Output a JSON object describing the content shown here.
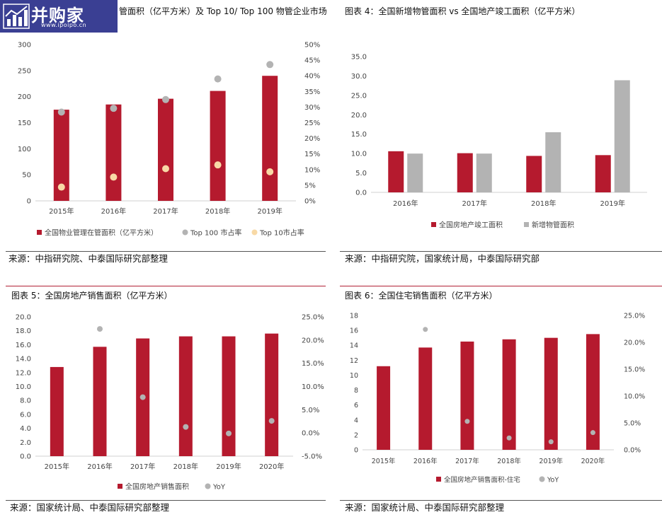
{
  "logo": {
    "name": "并购家",
    "url": "www.ipoipo.cn",
    "icon": "bar-chart-icon"
  },
  "colors": {
    "bar": "#b51a2e",
    "gray": "#b3b3b3",
    "peach": "#f8d9a6",
    "rule_red": "#b22235"
  },
  "charts": [
    {
      "title": "管面积（亿平方米）及 Top 10/ Top 100 物管企业市场",
      "source": "来源：中指研究院、中泰国际研究部整理",
      "chart_data": {
        "type": "bar",
        "categories": [
          "2015年",
          "2016年",
          "2017年",
          "2018年",
          "2019年"
        ],
        "ylim": [
          0,
          300
        ],
        "yticks": [
          "0",
          "50",
          "100",
          "150",
          "200",
          "250",
          "300"
        ],
        "y2lim": [
          0,
          50
        ],
        "y2ticks": [
          "0%",
          "5%",
          "10%",
          "15%",
          "20%",
          "25%",
          "30%",
          "35%",
          "40%",
          "45%",
          "50%"
        ],
        "series": [
          {
            "name": "全国物业管理在管面积（亿平方米）",
            "kind": "bar",
            "axis": "left",
            "color": "#b51a2e",
            "values": [
              175,
              185,
              196,
              211,
              240
            ]
          },
          {
            "name": "Top 100 市占率",
            "kind": "dot",
            "axis": "right",
            "color": "#b3b3b3",
            "values": [
              28.4,
              29.6,
              32.4,
              39.0,
              43.6
            ]
          },
          {
            "name": "Top 10市占率",
            "kind": "dot",
            "axis": "right",
            "color": "#f8d9a6",
            "values": [
              4.4,
              7.6,
              10.3,
              11.5,
              9.3
            ]
          }
        ]
      }
    },
    {
      "title": "图表 4：全国新增物管面积 vs 全国地产竣工面积（亿平方米）",
      "source": "来源：中指研究院，国家统计局，中泰国际研究部",
      "chart_data": {
        "type": "bar",
        "categories": [
          "2016年",
          "2017年",
          "2018年",
          "2019年"
        ],
        "ylim": [
          0,
          35
        ],
        "yticks": [
          "0.0",
          "5.0",
          "10.0",
          "15.0",
          "20.0",
          "25.0",
          "30.0",
          "35.0"
        ],
        "series": [
          {
            "name": "全国房地产竣工面积",
            "kind": "bar",
            "color": "#b51a2e",
            "values": [
              10.6,
              10.1,
              9.4,
              9.6
            ]
          },
          {
            "name": "新增物管面积",
            "kind": "bar",
            "color": "#b3b3b3",
            "values": [
              10.0,
              10.0,
              15.5,
              28.9
            ]
          }
        ]
      }
    },
    {
      "title": "图表 5：全国房地产销售面积（亿平方米）",
      "source": "来源：国家统计局、中泰国际研究部整理",
      "chart_data": {
        "type": "bar",
        "categories": [
          "2015年",
          "2016年",
          "2017年",
          "2018年",
          "2019年",
          "2020年"
        ],
        "ylim": [
          0,
          20
        ],
        "yticks": [
          "0.0",
          "2.0",
          "4.0",
          "6.0",
          "8.0",
          "10.0",
          "12.0",
          "14.0",
          "16.0",
          "18.0",
          "20.0"
        ],
        "y2lim": [
          -5,
          25
        ],
        "y2ticks": [
          "-5.0%",
          "0.0%",
          "5.0%",
          "10.0%",
          "15.0%",
          "20.0%",
          "25.0%"
        ],
        "series": [
          {
            "name": "全国房地产销售面积",
            "kind": "bar",
            "axis": "left",
            "color": "#b51a2e",
            "values": [
              12.8,
              15.7,
              16.9,
              17.2,
              17.2,
              17.6
            ]
          },
          {
            "name": "YoY",
            "kind": "dot",
            "axis": "right",
            "color": "#b3b3b3",
            "values": [
              null,
              22.4,
              7.7,
              1.3,
              -0.1,
              2.6
            ]
          }
        ]
      }
    },
    {
      "title": "图表 6：全国住宅销售面积（亿平方米）",
      "source": "来源：国家统计局、中泰国际研究部整理",
      "chart_data": {
        "type": "bar",
        "categories": [
          "2015年",
          "2016年",
          "2017年",
          "2018年",
          "2019年",
          "2020年"
        ],
        "ylim": [
          0,
          18
        ],
        "yticks": [
          "0",
          "2",
          "4",
          "6",
          "8",
          "10",
          "12",
          "14",
          "16",
          "18"
        ],
        "y2lim": [
          0,
          25
        ],
        "y2ticks": [
          "0.0%",
          "5.0%",
          "10.0%",
          "15.0%",
          "20.0%",
          "25.0%"
        ],
        "series": [
          {
            "name": "全国房地产销售面积-住宅",
            "kind": "bar",
            "axis": "left",
            "color": "#b51a2e",
            "values": [
              11.2,
              13.7,
              14.5,
              14.8,
              15.0,
              15.5
            ]
          },
          {
            "name": "YoY",
            "kind": "dot",
            "axis": "right",
            "color": "#b3b3b3",
            "values": [
              null,
              22.4,
              5.3,
              2.2,
              1.5,
              3.2
            ]
          }
        ]
      }
    }
  ]
}
